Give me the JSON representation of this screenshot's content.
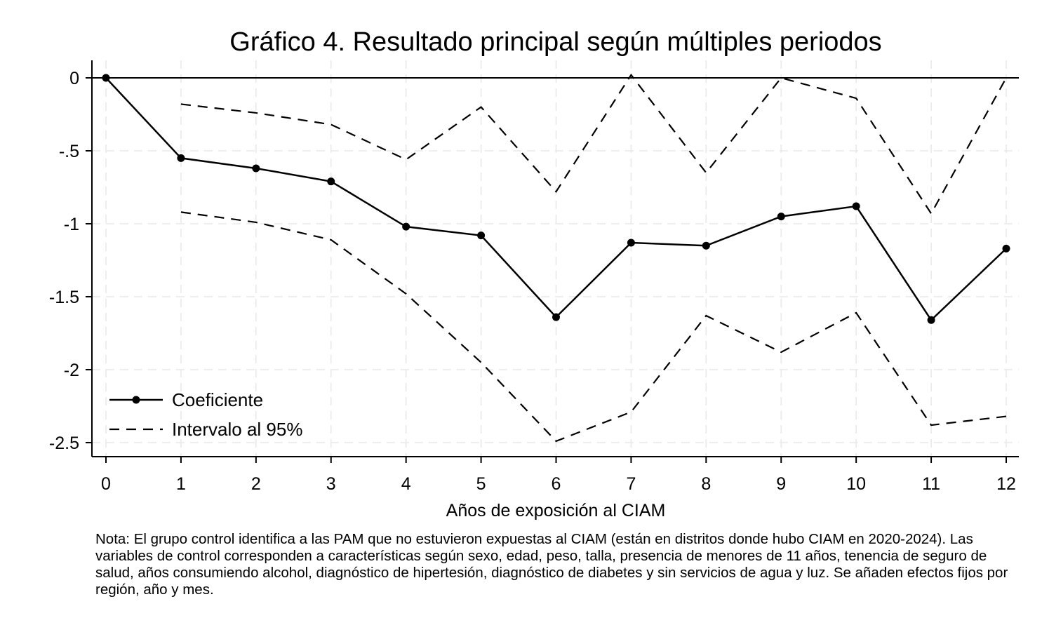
{
  "chart_data": {
    "type": "line",
    "title": "Gráfico 4. Resultado principal según múltiples periodos",
    "xlabel": "Años de exposición al CIAM",
    "ylabel": "",
    "x": [
      0,
      1,
      2,
      3,
      4,
      5,
      6,
      7,
      8,
      9,
      10,
      11,
      12
    ],
    "xlim": [
      0,
      12
    ],
    "ylim": [
      -2.5,
      0
    ],
    "xticks": [
      "0",
      "1",
      "2",
      "3",
      "4",
      "5",
      "6",
      "7",
      "8",
      "9",
      "10",
      "11",
      "12"
    ],
    "yticks": [
      "0",
      "-.5",
      "-1",
      "-1.5",
      "-2",
      "-2.5"
    ],
    "ytick_values": [
      0,
      -0.5,
      -1,
      -1.5,
      -2,
      -2.5
    ],
    "reference_line_y": 0,
    "grid": true,
    "legend_position": "bottom-left",
    "series": [
      {
        "name": "Coeficiente",
        "style": "solid-markers",
        "color": "#000000",
        "values": [
          0,
          -0.55,
          -0.62,
          -0.71,
          -1.02,
          -1.08,
          -1.64,
          -1.13,
          -1.15,
          -0.95,
          -0.88,
          -1.66,
          -1.17
        ]
      },
      {
        "name": "Intervalo al 95%",
        "style": "dashed",
        "color": "#000000",
        "upper": {
          "x": [
            1,
            2,
            3,
            4,
            5,
            6,
            7,
            8,
            9,
            10,
            11,
            12
          ],
          "values": [
            -0.18,
            -0.24,
            -0.32,
            -0.56,
            -0.2,
            -0.78,
            0.02,
            -0.65,
            0,
            -0.14,
            -0.93,
            0
          ]
        },
        "lower": {
          "x": [
            1,
            2,
            3,
            4,
            5,
            6,
            7,
            8,
            9,
            10,
            11,
            12
          ],
          "values": [
            -0.92,
            -0.99,
            -1.11,
            -1.48,
            -1.95,
            -2.49,
            -2.29,
            -1.63,
            -1.88,
            -1.61,
            -2.38,
            -2.32
          ]
        }
      }
    ]
  },
  "note": "Nota: El grupo control identifica a las PAM que no estuvieron expuestas al CIAM (están en distritos donde hubo CIAM en 2020-2024). Las variables de control corresponden a características según sexo, edad, peso, talla, presencia de menores de 11 años, tenencia de seguro de salud, años consumiendo alcohol, diagnóstico de hipertesión, diagnóstico de diabetes y sin servicios de agua y luz. Se añaden efectos fijos por región, año y mes."
}
